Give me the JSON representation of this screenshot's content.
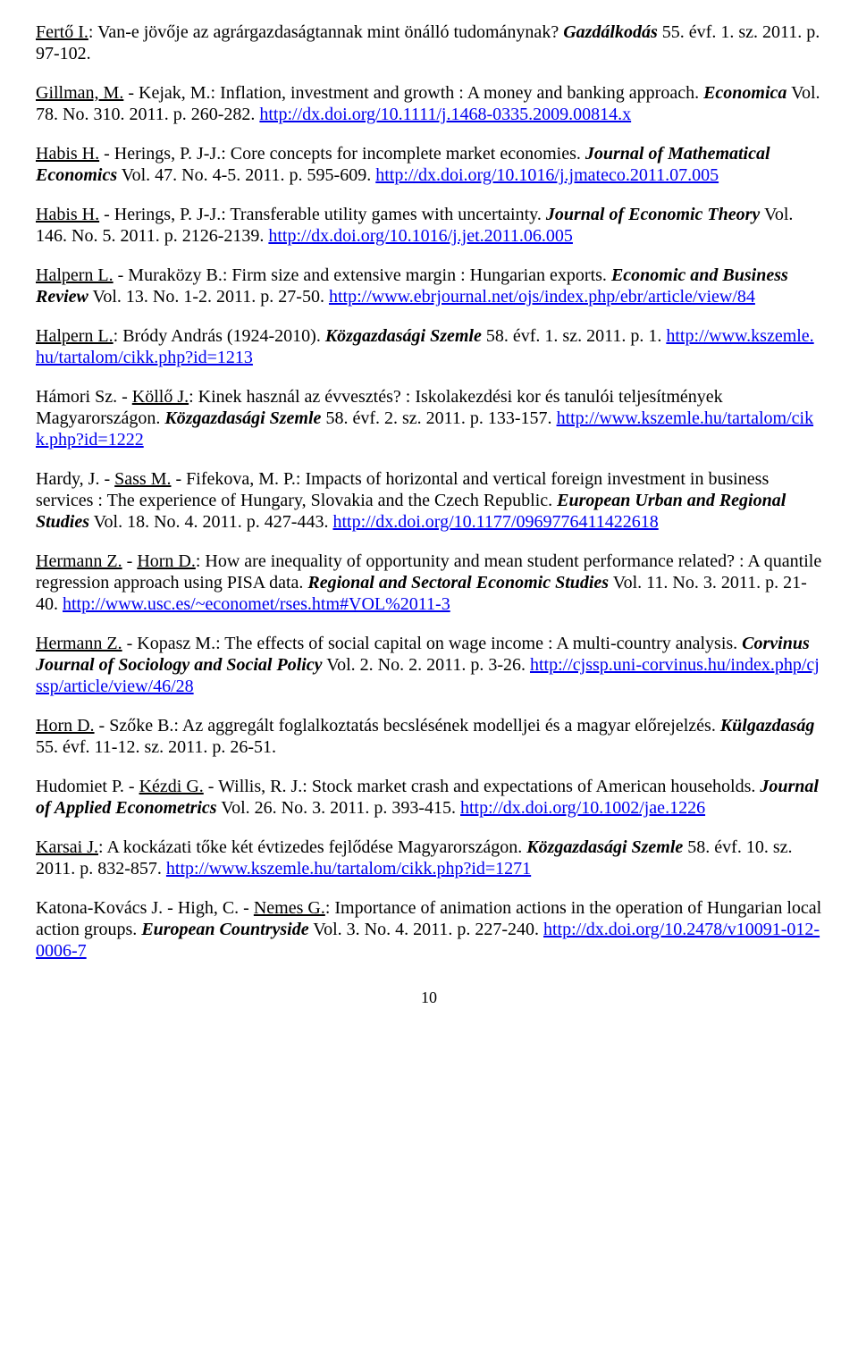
{
  "entries": [
    {
      "parts": [
        {
          "t": "au",
          "v": "Fertő I."
        },
        {
          "t": "txt",
          "v": ": Van-e jövője az agrárgazdaságtannak mint önálló tudománynak? "
        },
        {
          "t": "it",
          "v": "Gazdálkodás"
        },
        {
          "t": "txt",
          "v": " 55. évf. 1. sz. 2011. p. 97-102."
        }
      ]
    },
    {
      "parts": [
        {
          "t": "au",
          "v": "Gillman, M."
        },
        {
          "t": "txt",
          "v": " - Kejak, M.: Inflation, investment and growth : A money and banking approach. "
        },
        {
          "t": "it",
          "v": "Economica"
        },
        {
          "t": "txt",
          "v": " Vol. 78. No. 310. 2011. p. 260-282. "
        },
        {
          "t": "lnk",
          "v": "http://dx.doi.org/10.1111/j.1468-0335.2009.00814.x"
        }
      ]
    },
    {
      "parts": [
        {
          "t": "au",
          "v": "Habis H."
        },
        {
          "t": "txt",
          "v": " - Herings, P. J-J.: Core concepts for incomplete market economies. "
        },
        {
          "t": "it",
          "v": "Journal of Mathematical Economics"
        },
        {
          "t": "txt",
          "v": " Vol. 47. No. 4-5. 2011. p. 595-609. "
        },
        {
          "t": "lnk",
          "v": "http://dx.doi.org/10.1016/j.jmateco.2011.07.005"
        }
      ]
    },
    {
      "parts": [
        {
          "t": "au",
          "v": "Habis H."
        },
        {
          "t": "txt",
          "v": " - Herings, P. J-J.: Transferable utility games with uncertainty. "
        },
        {
          "t": "it",
          "v": "Journal of Economic Theory"
        },
        {
          "t": "txt",
          "v": " Vol. 146. No. 5. 2011. p. 2126-2139. "
        },
        {
          "t": "lnk",
          "v": "http://dx.doi.org/10.1016/j.jet.2011.06.005"
        }
      ]
    },
    {
      "parts": [
        {
          "t": "au",
          "v": "Halpern L."
        },
        {
          "t": "txt",
          "v": " - Muraközy B.: Firm size and extensive margin : Hungarian exports. "
        },
        {
          "t": "it",
          "v": "Economic and Business Review"
        },
        {
          "t": "txt",
          "v": " Vol. 13. No. 1-2. 2011. p. 27-50. "
        },
        {
          "t": "lnk",
          "v": "http://www.ebrjournal.net/ojs/index.php/ebr/article/view/84"
        }
      ]
    },
    {
      "parts": [
        {
          "t": "au",
          "v": "Halpern L."
        },
        {
          "t": "txt",
          "v": ": Bródy András (1924-2010). "
        },
        {
          "t": "it",
          "v": "Közgazdasági Szemle"
        },
        {
          "t": "txt",
          "v": " 58. évf. 1. sz. 2011. p. 1. "
        },
        {
          "t": "lnk",
          "v": "http://www.kszemle.hu/tartalom/cikk.php?id=1213"
        }
      ]
    },
    {
      "parts": [
        {
          "t": "txt",
          "v": "Hámori Sz. - "
        },
        {
          "t": "au",
          "v": "Köllő J."
        },
        {
          "t": "txt",
          "v": ": Kinek használ az évvesztés? : Iskolakezdési kor és tanulói teljesítmények Magyarországon. "
        },
        {
          "t": "it",
          "v": "Közgazdasági Szemle"
        },
        {
          "t": "txt",
          "v": " 58. évf. 2. sz. 2011. p. 133-157. "
        },
        {
          "t": "lnk",
          "v": "http://www.kszemle.hu/tartalom/cikk.php?id=1222"
        }
      ]
    },
    {
      "parts": [
        {
          "t": "txt",
          "v": "Hardy, J. - "
        },
        {
          "t": "au",
          "v": "Sass M."
        },
        {
          "t": "txt",
          "v": " - Fifekova, M. P.: Impacts of horizontal and vertical foreign investment in business services : The experience of Hungary, Slovakia and the Czech Republic. "
        },
        {
          "t": "it",
          "v": "European Urban and Regional Studies"
        },
        {
          "t": "txt",
          "v": " Vol. 18. No. 4. 2011. p. 427-443. "
        },
        {
          "t": "lnk",
          "v": "http://dx.doi.org/10.1177/0969776411422618"
        }
      ]
    },
    {
      "parts": [
        {
          "t": "au",
          "v": "Hermann Z."
        },
        {
          "t": "txt",
          "v": " - "
        },
        {
          "t": "au",
          "v": "Horn D."
        },
        {
          "t": "txt",
          "v": ": How are inequality of opportunity and mean student performance related? : A quantile regression approach using PISA data. "
        },
        {
          "t": "it",
          "v": "Regional and Sectoral Economic Studies"
        },
        {
          "t": "txt",
          "v": " Vol. 11. No. 3. 2011. p. 21-40. "
        },
        {
          "t": "lnk",
          "v": "http://www.usc.es/~economet/rses.htm#VOL%2011-3"
        }
      ]
    },
    {
      "parts": [
        {
          "t": "au",
          "v": "Hermann Z."
        },
        {
          "t": "txt",
          "v": " - Kopasz M.: The effects of social capital on wage income : A multi-country analysis. "
        },
        {
          "t": "it",
          "v": "Corvinus Journal of Sociology and Social Policy"
        },
        {
          "t": "txt",
          "v": " Vol. 2. No. 2. 2011. p. 3-26. "
        },
        {
          "t": "lnk",
          "v": "http://cjssp.uni-corvinus.hu/index.php/cjssp/article/view/46/28"
        }
      ]
    },
    {
      "parts": [
        {
          "t": "au",
          "v": "Horn D."
        },
        {
          "t": "txt",
          "v": " - Szőke B.: Az aggregált foglalkoztatás becslésének modelljei és a magyar előrejelzés. "
        },
        {
          "t": "it",
          "v": "Külgazdaság"
        },
        {
          "t": "txt",
          "v": " 55. évf. 11-12. sz. 2011. p. 26-51."
        }
      ]
    },
    {
      "parts": [
        {
          "t": "txt",
          "v": "Hudomiet P. - "
        },
        {
          "t": "au",
          "v": "Kézdi G."
        },
        {
          "t": "txt",
          "v": " - Willis, R. J.: Stock market crash and expectations of American households. "
        },
        {
          "t": "it",
          "v": "Journal of Applied Econometrics"
        },
        {
          "t": "txt",
          "v": " Vol. 26. No. 3. 2011. p. 393-415. "
        },
        {
          "t": "lnk",
          "v": "http://dx.doi.org/10.1002/jae.1226"
        }
      ]
    },
    {
      "parts": [
        {
          "t": "au",
          "v": "Karsai J."
        },
        {
          "t": "txt",
          "v": ": A kockázati tőke két évtizedes fejlődése Magyarországon. "
        },
        {
          "t": "it",
          "v": "Közgazdasági Szemle"
        },
        {
          "t": "txt",
          "v": " 58. évf. 10. sz. 2011. p. 832-857. "
        },
        {
          "t": "lnk",
          "v": "http://www.kszemle.hu/tartalom/cikk.php?id=1271"
        }
      ]
    },
    {
      "parts": [
        {
          "t": "txt",
          "v": "Katona-Kovács J. - High, C. - "
        },
        {
          "t": "au",
          "v": "Nemes G."
        },
        {
          "t": "txt",
          "v": ": Importance of animation actions in the operation of Hungarian local action groups. "
        },
        {
          "t": "it",
          "v": "European Countryside"
        },
        {
          "t": "txt",
          "v": " Vol. 3. No. 4. 2011. p. 227-240. "
        },
        {
          "t": "lnk",
          "v": "http://dx.doi.org/10.2478/v10091-012-0006-7"
        }
      ]
    }
  ],
  "pageNumber": "10"
}
